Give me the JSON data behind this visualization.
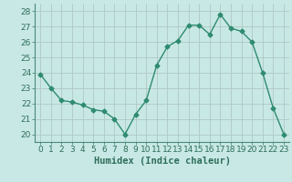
{
  "x": [
    0,
    1,
    2,
    3,
    4,
    5,
    6,
    7,
    8,
    9,
    10,
    11,
    12,
    13,
    14,
    15,
    16,
    17,
    18,
    19,
    20,
    21,
    22,
    23
  ],
  "y": [
    23.9,
    23.0,
    22.2,
    22.1,
    21.9,
    21.6,
    21.5,
    21.0,
    20.0,
    21.3,
    22.2,
    24.5,
    25.7,
    26.1,
    27.1,
    27.1,
    26.5,
    27.8,
    26.9,
    26.7,
    26.0,
    24.0,
    21.7,
    20.0
  ],
  "line_color": "#2e8b70",
  "marker": "D",
  "markersize": 2.5,
  "linewidth": 1.0,
  "bg_color": "#c8e8e5",
  "grid_color_major": "#b0c8c4",
  "grid_color_minor": "#d4e8e5",
  "xlabel": "Humidex (Indice chaleur)",
  "xlim": [
    -0.5,
    23.5
  ],
  "ylim": [
    19.5,
    28.5
  ],
  "yticks": [
    20,
    21,
    22,
    23,
    24,
    25,
    26,
    27,
    28
  ],
  "xtick_labels": [
    "0",
    "1",
    "2",
    "3",
    "4",
    "5",
    "6",
    "7",
    "8",
    "9",
    "10",
    "11",
    "12",
    "13",
    "14",
    "15",
    "16",
    "17",
    "18",
    "19",
    "20",
    "21",
    "22",
    "23"
  ],
  "tick_fontsize": 6.5,
  "label_fontsize": 7.5,
  "tick_color": "#2e6e5a",
  "spine_color": "#4a8a78"
}
